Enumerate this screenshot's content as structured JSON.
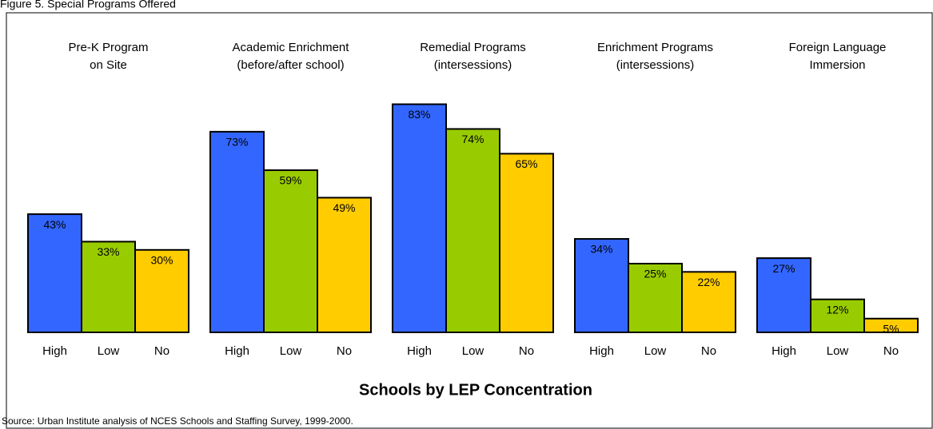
{
  "chart_data": {
    "type": "bar",
    "title": "Figure 5. Special Programs Offered",
    "categories": [
      [
        "Pre-K Program",
        "on Site"
      ],
      [
        "Academic Enrichment",
        "(before/after school)"
      ],
      [
        "Remedial Programs",
        "(intersessions)"
      ],
      [
        "Enrichment Programs",
        "(intersessions)"
      ],
      [
        "Foreign Language",
        "Immersion"
      ]
    ],
    "series": [
      {
        "name": "High",
        "color": "#3366ff",
        "values": [
          43,
          73,
          83,
          34,
          27
        ],
        "value_labels": [
          "43%",
          "73%",
          "83%",
          "34%",
          "27%"
        ]
      },
      {
        "name": "Low",
        "color": "#99cc00",
        "values": [
          33,
          59,
          74,
          25,
          12
        ],
        "value_labels": [
          "33%",
          "59%",
          "74%",
          "25%",
          "12%"
        ]
      },
      {
        "name": "No",
        "color": "#ffcc00",
        "values": [
          30,
          49,
          65,
          22,
          5
        ],
        "value_labels": [
          "30%",
          "49%",
          "65%",
          "22%",
          "5%"
        ]
      }
    ],
    "xlabel": "Schools by LEP Concentration",
    "source": "Source: Urban Institute analysis of NCES Schools and Staffing Survey, 1999-2000."
  }
}
